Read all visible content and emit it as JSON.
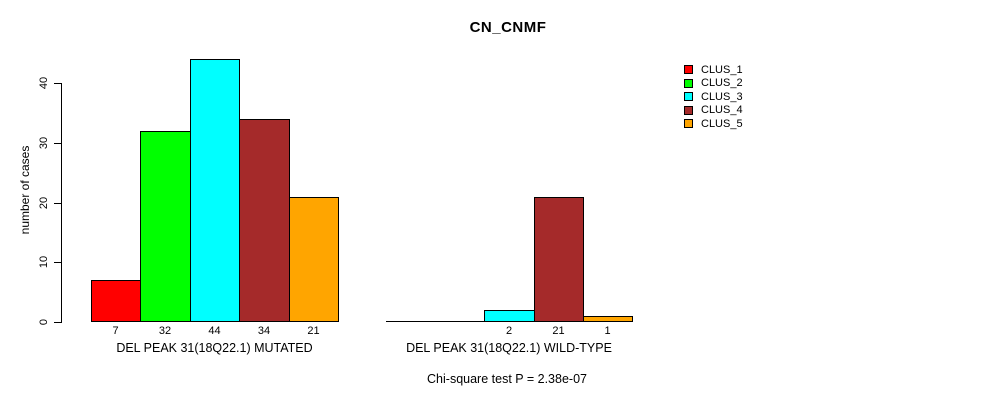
{
  "title": "CN_CNMF",
  "chart_data": {
    "type": "bar",
    "title": "CN_CNMF",
    "ylabel": "number of cases",
    "xlabel": "",
    "ylim": [
      0,
      44
    ],
    "yticks": [
      0,
      10,
      20,
      30,
      40
    ],
    "grid": false,
    "legend_position": "top-right",
    "legend": [
      {
        "label": "CLUS_1",
        "color": "#FF0000"
      },
      {
        "label": "CLUS_2",
        "color": "#00FF00"
      },
      {
        "label": "CLUS_3",
        "color": "#00FFFF"
      },
      {
        "label": "CLUS_4",
        "color": "#A52A2A"
      },
      {
        "label": "CLUS_5",
        "color": "#FFA500"
      }
    ],
    "categories": [
      "CLUS_1",
      "CLUS_2",
      "CLUS_3",
      "CLUS_4",
      "CLUS_5"
    ],
    "groups": [
      {
        "label": "DEL PEAK 31(18Q22.1) MUTATED",
        "values": [
          7,
          32,
          44,
          34,
          21
        ]
      },
      {
        "label": "DEL PEAK 31(18Q22.1) WILD-TYPE",
        "values": [
          0,
          0,
          2,
          21,
          1
        ]
      }
    ],
    "bar_value_labels_shown": true,
    "zero_bars_unlabeled": true,
    "footnote": "Chi-square test P = 2.38e-07"
  },
  "colors": {
    "background": "#FFFFFF",
    "axis": "#000000",
    "text": "#000000",
    "bar_border": "#000000"
  }
}
